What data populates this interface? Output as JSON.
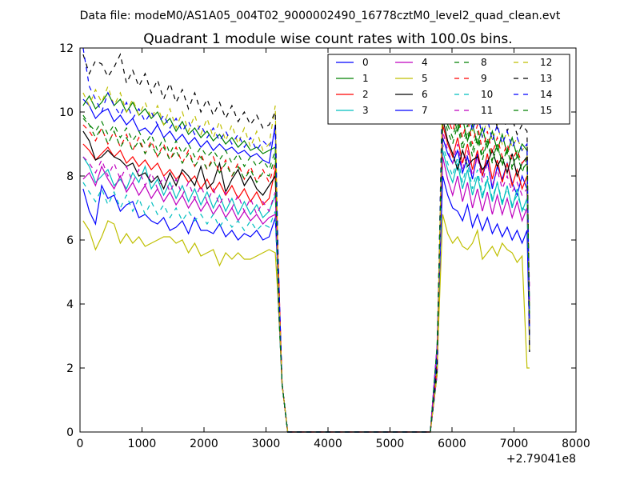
{
  "chart_data": {
    "type": "line",
    "suptitle": "Data file: modeM0/AS1A05_004T02_9000002490_16778cztM0_level2_quad_clean.evt",
    "title": "Quadrant 1 module wise count rates with 100.0s bins.",
    "xlabel": "",
    "ylabel": "",
    "x_offset_label": "+2.79041e8",
    "xlim": [
      0,
      8000
    ],
    "ylim": [
      0,
      12
    ],
    "xticks": [
      "0",
      "1000",
      "2000",
      "3000",
      "4000",
      "5000",
      "6000",
      "7000",
      "8000"
    ],
    "yticks": [
      "0",
      "2",
      "4",
      "6",
      "8",
      "10",
      "12"
    ],
    "grid": false,
    "legend_position": "top-right",
    "series": [
      {
        "name": "0",
        "color": "#0000ff",
        "dash": "solid",
        "a": [
          10.4,
          10.2,
          9.8,
          10.0,
          10.1,
          9.7,
          9.9,
          9.6,
          9.8,
          9.4,
          9.5,
          9.3,
          9.6,
          9.2,
          9.4,
          9.1,
          9.3,
          9.0,
          9.2,
          8.9,
          9.1,
          8.8,
          9.0,
          8.8,
          8.9,
          8.7,
          8.8,
          8.6,
          8.7,
          8.5,
          8.4,
          9.6
        ],
        "b": [
          9.2,
          8.7,
          8.4,
          8.8,
          8.1,
          8.6,
          7.9,
          8.7,
          8.0,
          8.5,
          7.6,
          8.3,
          7.9,
          8.4,
          7.8,
          7.4,
          8.0,
          7.6
        ]
      },
      {
        "name": "1",
        "color": "#008000",
        "dash": "solid",
        "a": [
          10.2,
          10.5,
          10.1,
          10.3,
          10.6,
          10.2,
          10.4,
          10.0,
          10.3,
          9.9,
          10.1,
          9.8,
          10.0,
          9.6,
          9.8,
          9.4,
          9.7,
          9.3,
          9.5,
          9.2,
          9.4,
          9.1,
          9.3,
          9.0,
          9.2,
          8.9,
          9.1,
          8.8,
          8.9,
          8.7,
          8.8,
          8.9
        ],
        "b": [
          10.2,
          9.6,
          9.9,
          9.4,
          9.8,
          9.1,
          9.6,
          9.0,
          9.5,
          8.9,
          9.4,
          8.8,
          9.3,
          8.7,
          9.2,
          8.6,
          9.0,
          8.8
        ]
      },
      {
        "name": "2",
        "color": "#ff0000",
        "dash": "solid",
        "a": [
          9.0,
          8.8,
          8.5,
          8.7,
          8.9,
          8.6,
          8.8,
          8.4,
          8.6,
          8.3,
          8.5,
          8.2,
          8.4,
          8.0,
          8.2,
          7.9,
          8.1,
          7.8,
          8.0,
          7.6,
          7.9,
          7.5,
          7.8,
          7.4,
          7.7,
          7.3,
          7.6,
          7.2,
          7.5,
          7.1,
          7.3,
          8.2
        ],
        "b": [
          9.6,
          9.0,
          8.6,
          9.2,
          8.4,
          9.0,
          8.2,
          8.8,
          8.0,
          8.7,
          7.9,
          8.5,
          7.8,
          8.4,
          7.7,
          8.2,
          7.6,
          8.0
        ]
      },
      {
        "name": "3",
        "color": "#00bfbf",
        "dash": "solid",
        "a": [
          8.6,
          8.3,
          7.8,
          8.0,
          8.2,
          7.7,
          7.9,
          7.6,
          8.1,
          7.8,
          8.3,
          7.6,
          7.9,
          7.4,
          7.8,
          7.3,
          7.7,
          7.2,
          7.6,
          7.1,
          7.5,
          7.0,
          7.4,
          6.9,
          7.3,
          6.8,
          7.2,
          6.8,
          7.1,
          6.7,
          6.9,
          7.4
        ],
        "b": [
          8.8,
          8.2,
          7.8,
          8.4,
          7.6,
          8.2,
          7.4,
          8.0,
          7.3,
          7.9,
          7.2,
          7.8,
          7.1,
          7.7,
          7.0,
          7.6,
          6.9,
          7.3
        ]
      },
      {
        "name": "4",
        "color": "#bf00bf",
        "dash": "solid",
        "a": [
          7.9,
          8.1,
          7.7,
          8.3,
          7.9,
          7.6,
          8.0,
          7.5,
          7.8,
          7.4,
          7.7,
          7.3,
          7.6,
          7.2,
          7.5,
          7.1,
          7.4,
          7.0,
          7.3,
          6.9,
          7.2,
          6.8,
          7.1,
          6.7,
          7.0,
          6.6,
          6.9,
          6.6,
          6.8,
          6.5,
          6.7,
          6.8
        ],
        "b": [
          8.6,
          7.9,
          7.4,
          8.0,
          7.2,
          7.8,
          7.0,
          7.6,
          6.9,
          7.5,
          6.8,
          7.4,
          6.8,
          7.3,
          6.7,
          7.2,
          6.6,
          7.0
        ]
      },
      {
        "name": "5",
        "color": "#bfbf00",
        "dash": "solid",
        "a": [
          6.6,
          6.3,
          5.7,
          6.1,
          6.6,
          6.5,
          5.9,
          6.2,
          5.9,
          6.1,
          5.8,
          5.9,
          6.0,
          6.1,
          6.1,
          5.9,
          6.0,
          5.6,
          5.9,
          5.5,
          5.6,
          5.7,
          5.2,
          5.6,
          5.4,
          5.6,
          5.4,
          5.4,
          5.5,
          5.6,
          5.7,
          5.6
        ],
        "b": [
          6.8,
          6.2,
          5.9,
          6.1,
          5.8,
          5.7,
          5.9,
          6.3,
          5.4,
          5.6,
          5.8,
          5.5,
          5.9,
          5.7,
          5.6,
          5.3,
          5.5,
          2.0
        ]
      },
      {
        "name": "6",
        "color": "#000000",
        "dash": "solid",
        "a": [
          9.4,
          9.1,
          8.5,
          8.6,
          8.8,
          8.6,
          8.5,
          8.3,
          8.4,
          8.0,
          8.1,
          7.8,
          8.0,
          7.6,
          8.1,
          7.7,
          8.2,
          8.0,
          7.7,
          8.3,
          7.6,
          7.8,
          8.4,
          7.5,
          7.9,
          8.2,
          7.7,
          8.0,
          7.6,
          7.4,
          7.7,
          8.0
        ],
        "b": [
          9.8,
          9.1,
          8.7,
          8.2,
          8.8,
          8.3,
          8.5,
          8.6,
          8.2,
          8.4,
          8.8,
          8.3,
          8.6,
          8.1,
          8.7,
          8.0,
          8.4,
          8.6
        ]
      },
      {
        "name": "7",
        "color": "#0000ff",
        "dash": "solid",
        "a": [
          7.6,
          6.9,
          6.5,
          7.7,
          7.3,
          7.4,
          6.9,
          7.1,
          7.2,
          6.7,
          6.8,
          6.6,
          6.5,
          6.7,
          6.3,
          6.4,
          6.6,
          6.2,
          6.7,
          6.3,
          6.3,
          6.2,
          6.5,
          6.1,
          6.3,
          6.0,
          6.2,
          6.1,
          6.3,
          6.0,
          6.1,
          6.7
        ],
        "b": [
          8.0,
          7.4,
          7.0,
          6.9,
          6.6,
          7.1,
          6.4,
          6.8,
          6.3,
          6.7,
          6.2,
          6.5,
          6.1,
          6.4,
          6.0,
          6.3,
          5.9,
          6.3
        ]
      },
      {
        "name": "8",
        "color": "#008000",
        "dash": "dashed",
        "a": [
          9.8,
          9.6,
          9.4,
          9.7,
          9.3,
          9.6,
          9.2,
          9.5,
          9.1,
          9.4,
          9.0,
          9.3,
          8.8,
          9.2,
          8.7,
          9.1,
          8.7,
          9.0,
          8.6,
          8.9,
          8.6,
          8.8,
          8.5,
          8.8,
          8.4,
          8.7,
          8.3,
          8.6,
          8.3,
          8.5,
          8.2,
          8.8
        ],
        "b": [
          10.0,
          9.4,
          9.0,
          9.6,
          8.8,
          9.4,
          8.6,
          9.2,
          8.5,
          9.1,
          8.4,
          9.0,
          8.3,
          8.9,
          8.2,
          8.8,
          8.1,
          8.6
        ]
      },
      {
        "name": "9",
        "color": "#ff0000",
        "dash": "dashed",
        "a": [
          9.6,
          9.4,
          9.1,
          9.5,
          9.0,
          9.4,
          8.9,
          9.3,
          8.8,
          9.2,
          8.7,
          9.1,
          8.6,
          9.0,
          8.5,
          8.9,
          8.4,
          8.8,
          8.3,
          8.7,
          8.2,
          8.6,
          8.1,
          8.5,
          8.0,
          8.4,
          7.9,
          8.3,
          7.8,
          8.2,
          7.8,
          8.4
        ],
        "b": [
          10.4,
          9.8,
          9.4,
          10.0,
          9.2,
          9.8,
          9.0,
          9.6,
          8.8,
          9.4,
          8.7,
          9.2,
          8.6,
          9.0,
          8.5,
          8.8,
          8.4,
          8.6
        ]
      },
      {
        "name": "10",
        "color": "#00bfbf",
        "dash": "dashed",
        "a": [
          7.8,
          7.5,
          7.2,
          7.6,
          7.1,
          7.5,
          7.0,
          7.4,
          6.9,
          7.3,
          6.8,
          7.2,
          6.8,
          7.1,
          6.7,
          7.0,
          6.6,
          6.9,
          6.6,
          6.8,
          6.5,
          6.8,
          6.4,
          6.7,
          6.4,
          6.6,
          6.3,
          6.6,
          6.3,
          6.5,
          6.4,
          6.9
        ],
        "b": [
          9.0,
          8.4,
          8.0,
          8.6,
          7.8,
          8.4,
          7.6,
          8.2,
          7.4,
          8.0,
          7.3,
          7.8,
          7.2,
          7.6,
          7.1,
          7.4,
          7.0,
          6.9
        ]
      },
      {
        "name": "11",
        "color": "#bf00bf",
        "dash": "dashed",
        "a": [
          8.6,
          8.4,
          8.1,
          8.5,
          8.0,
          8.4,
          7.9,
          8.3,
          7.8,
          8.2,
          7.7,
          8.1,
          7.6,
          8.0,
          7.5,
          7.9,
          7.4,
          7.8,
          7.3,
          7.7,
          7.2,
          7.6,
          7.1,
          7.5,
          7.0,
          7.4,
          6.9,
          7.3,
          6.8,
          7.2,
          6.9,
          7.5
        ],
        "b": [
          9.4,
          8.8,
          8.4,
          9.0,
          8.2,
          8.8,
          8.0,
          8.6,
          7.8,
          8.4,
          7.7,
          8.2,
          7.6,
          8.0,
          7.5,
          7.8,
          7.4,
          7.6
        ]
      },
      {
        "name": "12",
        "color": "#bfbf00",
        "dash": "dashed",
        "a": [
          10.6,
          10.2,
          10.7,
          10.3,
          10.8,
          10.2,
          10.6,
          10.0,
          10.4,
          9.9,
          10.3,
          9.8,
          10.2,
          9.6,
          10.1,
          9.5,
          10.0,
          9.4,
          9.9,
          9.3,
          9.8,
          9.2,
          9.7,
          9.1,
          9.6,
          9.0,
          9.5,
          8.9,
          9.4,
          8.8,
          9.0,
          10.2
        ],
        "b": [
          10.8,
          10.2,
          9.8,
          10.4,
          9.6,
          10.2,
          9.4,
          10.0,
          9.2,
          9.8,
          9.1,
          9.6,
          9.0,
          9.4,
          8.9,
          9.2,
          8.8,
          9.0
        ]
      },
      {
        "name": "13",
        "color": "#000000",
        "dash": "dashed",
        "a": [
          11.8,
          11.2,
          11.6,
          11.5,
          11.1,
          11.4,
          11.8,
          10.9,
          11.3,
          10.8,
          11.2,
          10.6,
          11.0,
          10.4,
          10.9,
          10.3,
          10.7,
          10.1,
          10.6,
          10.0,
          10.4,
          9.9,
          10.3,
          9.8,
          10.2,
          9.7,
          10.0,
          9.6,
          9.9,
          9.5,
          9.6,
          10.0
        ],
        "b": [
          11.4,
          10.8,
          11.0,
          10.2,
          10.8,
          10.0,
          10.6,
          9.8,
          10.4,
          9.6,
          10.2,
          9.5,
          10.0,
          9.4,
          9.8,
          9.3,
          9.6,
          9.4
        ]
      },
      {
        "name": "14",
        "color": "#0000ff",
        "dash": "dashed",
        "a": [
          12.0,
          10.8,
          10.4,
          10.0,
          10.6,
          10.2,
          9.9,
          10.3,
          9.8,
          10.1,
          9.7,
          10.0,
          9.6,
          9.9,
          9.5,
          9.8,
          9.4,
          9.7,
          9.3,
          9.6,
          9.2,
          9.5,
          9.1,
          9.4,
          9.0,
          9.3,
          8.9,
          9.2,
          8.8,
          9.1,
          8.9,
          9.4
        ],
        "b": [
          10.9,
          10.2,
          9.8,
          10.4,
          9.6,
          10.2,
          9.4,
          10.0,
          9.2,
          9.8,
          9.1,
          9.6,
          9.0,
          9.4,
          8.9,
          9.2,
          8.8,
          9.0
        ]
      },
      {
        "name": "15",
        "color": "#008000",
        "dash": "dashed",
        "a": [
          9.9,
          9.6,
          9.2,
          9.5,
          9.0,
          9.4,
          8.9,
          9.2,
          8.8,
          9.1,
          8.7,
          9.0,
          8.6,
          8.9,
          8.5,
          8.8,
          8.4,
          8.7,
          8.3,
          8.6,
          8.2,
          8.5,
          8.1,
          8.4,
          8.0,
          8.3,
          7.9,
          8.2,
          7.8,
          8.1,
          8.0,
          8.6
        ],
        "b": [
          10.2,
          9.6,
          9.2,
          9.8,
          9.0,
          9.6,
          8.8,
          9.4,
          8.6,
          9.2,
          8.5,
          9.0,
          8.4,
          8.8,
          8.3,
          8.6,
          8.2,
          8.4
        ]
      }
    ]
  }
}
